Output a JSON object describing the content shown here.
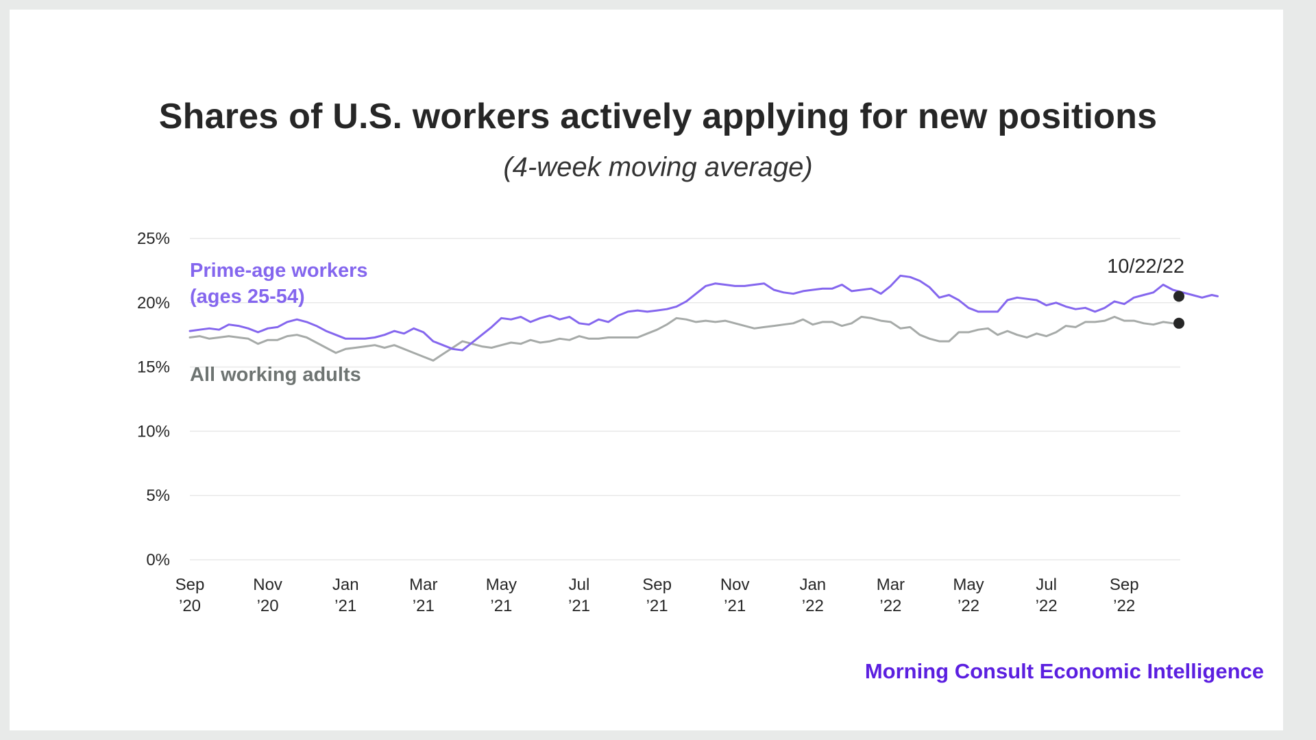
{
  "title": "Shares of U.S. workers actively applying for new positions",
  "subtitle": "(4-week moving average)",
  "footer": "Morning Consult Economic Intelligence",
  "colors": {
    "prime": "#8466ee",
    "all": "#a6aaa8",
    "all_label": "#6e7472",
    "grid": "#e8e8e8",
    "endpoint": "#262626",
    "brand": "#5b1fe0"
  },
  "chart_data": {
    "type": "line",
    "title": "Shares of U.S. workers actively applying for new positions",
    "subtitle": "(4-week moving average)",
    "xlabel": "",
    "ylabel": "",
    "ylim": [
      0,
      25
    ],
    "yticks": [
      "0%",
      "5%",
      "10%",
      "15%",
      "20%",
      "25%"
    ],
    "ytick_values": [
      0,
      5,
      10,
      15,
      20,
      25
    ],
    "xticks": [
      {
        "line1": "Sep",
        "line2": "’20",
        "month": 0
      },
      {
        "line1": "Nov",
        "line2": "’20",
        "month": 2
      },
      {
        "line1": "Jan",
        "line2": "’21",
        "month": 4
      },
      {
        "line1": "Mar",
        "line2": "’21",
        "month": 6
      },
      {
        "line1": "May",
        "line2": "’21",
        "month": 8
      },
      {
        "line1": "Jul",
        "line2": "’21",
        "month": 10
      },
      {
        "line1": "Sep",
        "line2": "’21",
        "month": 12
      },
      {
        "line1": "Nov",
        "line2": "’21",
        "month": 14
      },
      {
        "line1": "Jan",
        "line2": "’22",
        "month": 16
      },
      {
        "line1": "Mar",
        "line2": "’22",
        "month": 18
      },
      {
        "line1": "May",
        "line2": "’22",
        "month": 20
      },
      {
        "line1": "Jul",
        "line2": "’22",
        "month": 22
      },
      {
        "line1": "Sep",
        "line2": "’22",
        "month": 24
      }
    ],
    "xlim_months": [
      0,
      25.7
    ],
    "grid": true,
    "end_label": "10/22/22",
    "series": [
      {
        "name": "Prime-age workers (ages 25-54)",
        "label_lines": [
          "Prime-age workers",
          "(ages 25-54)"
        ],
        "color_key": "prime",
        "points": [
          [
            0.0,
            17.8
          ],
          [
            0.25,
            17.9
          ],
          [
            0.5,
            18.0
          ],
          [
            0.75,
            17.9
          ],
          [
            1.0,
            18.3
          ],
          [
            1.25,
            18.2
          ],
          [
            1.5,
            18.0
          ],
          [
            1.75,
            17.7
          ],
          [
            2.0,
            18.0
          ],
          [
            2.25,
            18.1
          ],
          [
            2.5,
            18.5
          ],
          [
            2.75,
            18.7
          ],
          [
            3.0,
            18.5
          ],
          [
            3.25,
            18.2
          ],
          [
            3.5,
            17.8
          ],
          [
            3.75,
            17.5
          ],
          [
            4.0,
            17.2
          ],
          [
            4.25,
            17.2
          ],
          [
            4.5,
            17.2
          ],
          [
            4.75,
            17.3
          ],
          [
            5.0,
            17.5
          ],
          [
            5.25,
            17.8
          ],
          [
            5.5,
            17.6
          ],
          [
            5.75,
            18.0
          ],
          [
            6.0,
            17.7
          ],
          [
            6.25,
            17.0
          ],
          [
            6.5,
            16.7
          ],
          [
            6.75,
            16.4
          ],
          [
            7.0,
            16.3
          ],
          [
            7.25,
            16.9
          ],
          [
            7.5,
            17.5
          ],
          [
            7.75,
            18.1
          ],
          [
            8.0,
            18.8
          ],
          [
            8.25,
            18.7
          ],
          [
            8.5,
            18.9
          ],
          [
            8.75,
            18.5
          ],
          [
            9.0,
            18.8
          ],
          [
            9.25,
            19.0
          ],
          [
            9.5,
            18.7
          ],
          [
            9.75,
            18.9
          ],
          [
            10.0,
            18.4
          ],
          [
            10.25,
            18.3
          ],
          [
            10.5,
            18.7
          ],
          [
            10.75,
            18.5
          ],
          [
            11.0,
            19.0
          ],
          [
            11.25,
            19.3
          ],
          [
            11.5,
            19.4
          ],
          [
            11.75,
            19.3
          ],
          [
            12.0,
            19.4
          ],
          [
            12.25,
            19.5
          ],
          [
            12.5,
            19.7
          ],
          [
            12.75,
            20.1
          ],
          [
            13.0,
            20.7
          ],
          [
            13.25,
            21.3
          ],
          [
            13.5,
            21.5
          ],
          [
            13.75,
            21.4
          ],
          [
            14.0,
            21.3
          ],
          [
            14.25,
            21.3
          ],
          [
            14.5,
            21.4
          ],
          [
            14.75,
            21.5
          ],
          [
            15.0,
            21.0
          ],
          [
            15.25,
            20.8
          ],
          [
            15.5,
            20.7
          ],
          [
            15.75,
            20.9
          ],
          [
            16.0,
            21.0
          ],
          [
            16.25,
            21.1
          ],
          [
            16.5,
            21.1
          ],
          [
            16.75,
            21.4
          ],
          [
            17.0,
            20.9
          ],
          [
            17.25,
            21.0
          ],
          [
            17.5,
            21.1
          ],
          [
            17.75,
            20.7
          ],
          [
            18.0,
            21.3
          ],
          [
            18.25,
            22.1
          ],
          [
            18.5,
            22.0
          ],
          [
            18.75,
            21.7
          ],
          [
            19.0,
            21.2
          ],
          [
            19.25,
            20.4
          ],
          [
            19.5,
            20.6
          ],
          [
            19.75,
            20.2
          ],
          [
            20.0,
            19.6
          ],
          [
            20.25,
            19.3
          ],
          [
            20.5,
            19.3
          ],
          [
            20.75,
            19.3
          ],
          [
            21.0,
            20.2
          ],
          [
            21.25,
            20.4
          ],
          [
            21.5,
            20.3
          ],
          [
            21.75,
            20.2
          ],
          [
            22.0,
            19.8
          ],
          [
            22.25,
            20.0
          ],
          [
            22.5,
            19.7
          ],
          [
            22.75,
            19.5
          ],
          [
            23.0,
            19.6
          ],
          [
            23.25,
            19.3
          ],
          [
            23.5,
            19.6
          ],
          [
            23.75,
            20.1
          ],
          [
            24.0,
            19.9
          ],
          [
            24.25,
            20.4
          ],
          [
            24.5,
            20.6
          ],
          [
            24.75,
            20.8
          ],
          [
            25.0,
            21.4
          ],
          [
            25.25,
            21.0
          ],
          [
            25.5,
            20.8
          ],
          [
            25.75,
            20.6
          ],
          [
            26.0,
            20.4
          ],
          [
            26.25,
            20.6
          ],
          [
            26.4,
            20.5
          ]
        ]
      },
      {
        "name": "All working adults",
        "label_lines": [
          "All working adults"
        ],
        "color_key": "all",
        "points": [
          [
            0.0,
            17.3
          ],
          [
            0.25,
            17.4
          ],
          [
            0.5,
            17.2
          ],
          [
            0.75,
            17.3
          ],
          [
            1.0,
            17.4
          ],
          [
            1.25,
            17.3
          ],
          [
            1.5,
            17.2
          ],
          [
            1.75,
            16.8
          ],
          [
            2.0,
            17.1
          ],
          [
            2.25,
            17.1
          ],
          [
            2.5,
            17.4
          ],
          [
            2.75,
            17.5
          ],
          [
            3.0,
            17.3
          ],
          [
            3.25,
            16.9
          ],
          [
            3.5,
            16.5
          ],
          [
            3.75,
            16.1
          ],
          [
            4.0,
            16.4
          ],
          [
            4.25,
            16.5
          ],
          [
            4.5,
            16.6
          ],
          [
            4.75,
            16.7
          ],
          [
            5.0,
            16.5
          ],
          [
            5.25,
            16.7
          ],
          [
            5.5,
            16.4
          ],
          [
            5.75,
            16.1
          ],
          [
            6.0,
            15.8
          ],
          [
            6.25,
            15.5
          ],
          [
            6.5,
            16.0
          ],
          [
            6.75,
            16.5
          ],
          [
            7.0,
            17.0
          ],
          [
            7.25,
            16.8
          ],
          [
            7.5,
            16.6
          ],
          [
            7.75,
            16.5
          ],
          [
            8.0,
            16.7
          ],
          [
            8.25,
            16.9
          ],
          [
            8.5,
            16.8
          ],
          [
            8.75,
            17.1
          ],
          [
            9.0,
            16.9
          ],
          [
            9.25,
            17.0
          ],
          [
            9.5,
            17.2
          ],
          [
            9.75,
            17.1
          ],
          [
            10.0,
            17.4
          ],
          [
            10.25,
            17.2
          ],
          [
            10.5,
            17.2
          ],
          [
            10.75,
            17.3
          ],
          [
            11.0,
            17.3
          ],
          [
            11.25,
            17.3
          ],
          [
            11.5,
            17.3
          ],
          [
            11.75,
            17.6
          ],
          [
            12.0,
            17.9
          ],
          [
            12.25,
            18.3
          ],
          [
            12.5,
            18.8
          ],
          [
            12.75,
            18.7
          ],
          [
            13.0,
            18.5
          ],
          [
            13.25,
            18.6
          ],
          [
            13.5,
            18.5
          ],
          [
            13.75,
            18.6
          ],
          [
            14.0,
            18.4
          ],
          [
            14.25,
            18.2
          ],
          [
            14.5,
            18.0
          ],
          [
            14.75,
            18.1
          ],
          [
            15.0,
            18.2
          ],
          [
            15.25,
            18.3
          ],
          [
            15.5,
            18.4
          ],
          [
            15.75,
            18.7
          ],
          [
            16.0,
            18.3
          ],
          [
            16.25,
            18.5
          ],
          [
            16.5,
            18.5
          ],
          [
            16.75,
            18.2
          ],
          [
            17.0,
            18.4
          ],
          [
            17.25,
            18.9
          ],
          [
            17.5,
            18.8
          ],
          [
            17.75,
            18.6
          ],
          [
            18.0,
            18.5
          ],
          [
            18.25,
            18.0
          ],
          [
            18.5,
            18.1
          ],
          [
            18.75,
            17.5
          ],
          [
            19.0,
            17.2
          ],
          [
            19.25,
            17.0
          ],
          [
            19.5,
            17.0
          ],
          [
            19.75,
            17.7
          ],
          [
            20.0,
            17.7
          ],
          [
            20.25,
            17.9
          ],
          [
            20.5,
            18.0
          ],
          [
            20.75,
            17.5
          ],
          [
            21.0,
            17.8
          ],
          [
            21.25,
            17.5
          ],
          [
            21.5,
            17.3
          ],
          [
            21.75,
            17.6
          ],
          [
            22.0,
            17.4
          ],
          [
            22.25,
            17.7
          ],
          [
            22.5,
            18.2
          ],
          [
            22.75,
            18.1
          ],
          [
            23.0,
            18.5
          ],
          [
            23.25,
            18.5
          ],
          [
            23.5,
            18.6
          ],
          [
            23.75,
            18.9
          ],
          [
            24.0,
            18.6
          ],
          [
            24.25,
            18.6
          ],
          [
            24.5,
            18.4
          ],
          [
            24.75,
            18.3
          ],
          [
            25.0,
            18.5
          ],
          [
            25.25,
            18.4
          ]
        ]
      }
    ]
  }
}
